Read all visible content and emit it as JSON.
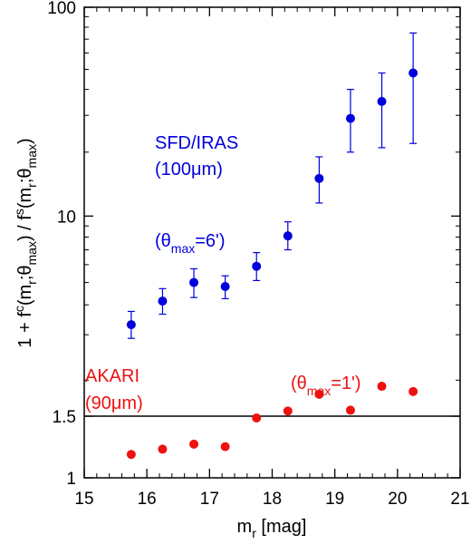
{
  "chart_data": {
    "type": "scatter",
    "xlabel": {
      "base": "m",
      "sub": "r",
      "rest": " [mag]"
    },
    "ylabel": "1 + f^c(m_r;θ_max) / f^s(m_r;θ_max)",
    "xlim": [
      15,
      21
    ],
    "ylim": [
      1,
      100
    ],
    "yscale": "log(y - 0.5) style (tick at 1.5)",
    "x_ticks": [
      "15",
      "16",
      "17",
      "18",
      "19",
      "20",
      "21"
    ],
    "y_ticks": [
      "1",
      "1.5",
      "10",
      "100"
    ],
    "reference_line_y": 1.5,
    "series": [
      {
        "name": "SFD/IRAS (100μm)",
        "color": "#0000dd",
        "points": [
          {
            "x": 15.75,
            "y": 3.3,
            "lo": 2.9,
            "hi": 3.75
          },
          {
            "x": 16.25,
            "y": 4.15,
            "lo": 3.65,
            "hi": 4.7
          },
          {
            "x": 16.75,
            "y": 5.0,
            "lo": 4.3,
            "hi": 5.75
          },
          {
            "x": 17.25,
            "y": 4.8,
            "lo": 4.25,
            "hi": 5.35
          },
          {
            "x": 17.75,
            "y": 5.9,
            "lo": 5.1,
            "hi": 6.8
          },
          {
            "x": 18.25,
            "y": 8.1,
            "lo": 7.0,
            "hi": 9.4
          },
          {
            "x": 18.75,
            "y": 15.0,
            "lo": 11.5,
            "hi": 19.0
          },
          {
            "x": 19.25,
            "y": 29.0,
            "lo": 20.0,
            "hi": 40.0
          },
          {
            "x": 19.75,
            "y": 35.0,
            "lo": 21.0,
            "hi": 48.0
          },
          {
            "x": 20.25,
            "y": 48.0,
            "lo": 22.0,
            "hi": 75.0
          }
        ]
      },
      {
        "name": "AKARI (90μm)",
        "color": "#ee1111",
        "points": [
          {
            "x": 15.75,
            "y": 1.15
          },
          {
            "x": 16.25,
            "y": 1.19
          },
          {
            "x": 16.75,
            "y": 1.23
          },
          {
            "x": 17.25,
            "y": 1.21
          },
          {
            "x": 17.75,
            "y": 1.48
          },
          {
            "x": 18.25,
            "y": 1.56
          },
          {
            "x": 18.75,
            "y": 1.78
          },
          {
            "x": 19.25,
            "y": 1.57
          },
          {
            "x": 19.75,
            "y": 1.9
          },
          {
            "x": 20.25,
            "y": 1.82
          }
        ]
      }
    ],
    "annotations": {
      "sfd_line1": "SFD/IRAS",
      "sfd_line2": "(100μm)",
      "sfd_theta": "(θ",
      "sfd_theta_sub": "max",
      "sfd_theta_val": "=6')",
      "akari_line1": "AKARI",
      "akari_line2": "(90μm)",
      "akari_theta": "(θ",
      "akari_theta_sub": "max",
      "akari_theta_val": "=1')"
    }
  }
}
